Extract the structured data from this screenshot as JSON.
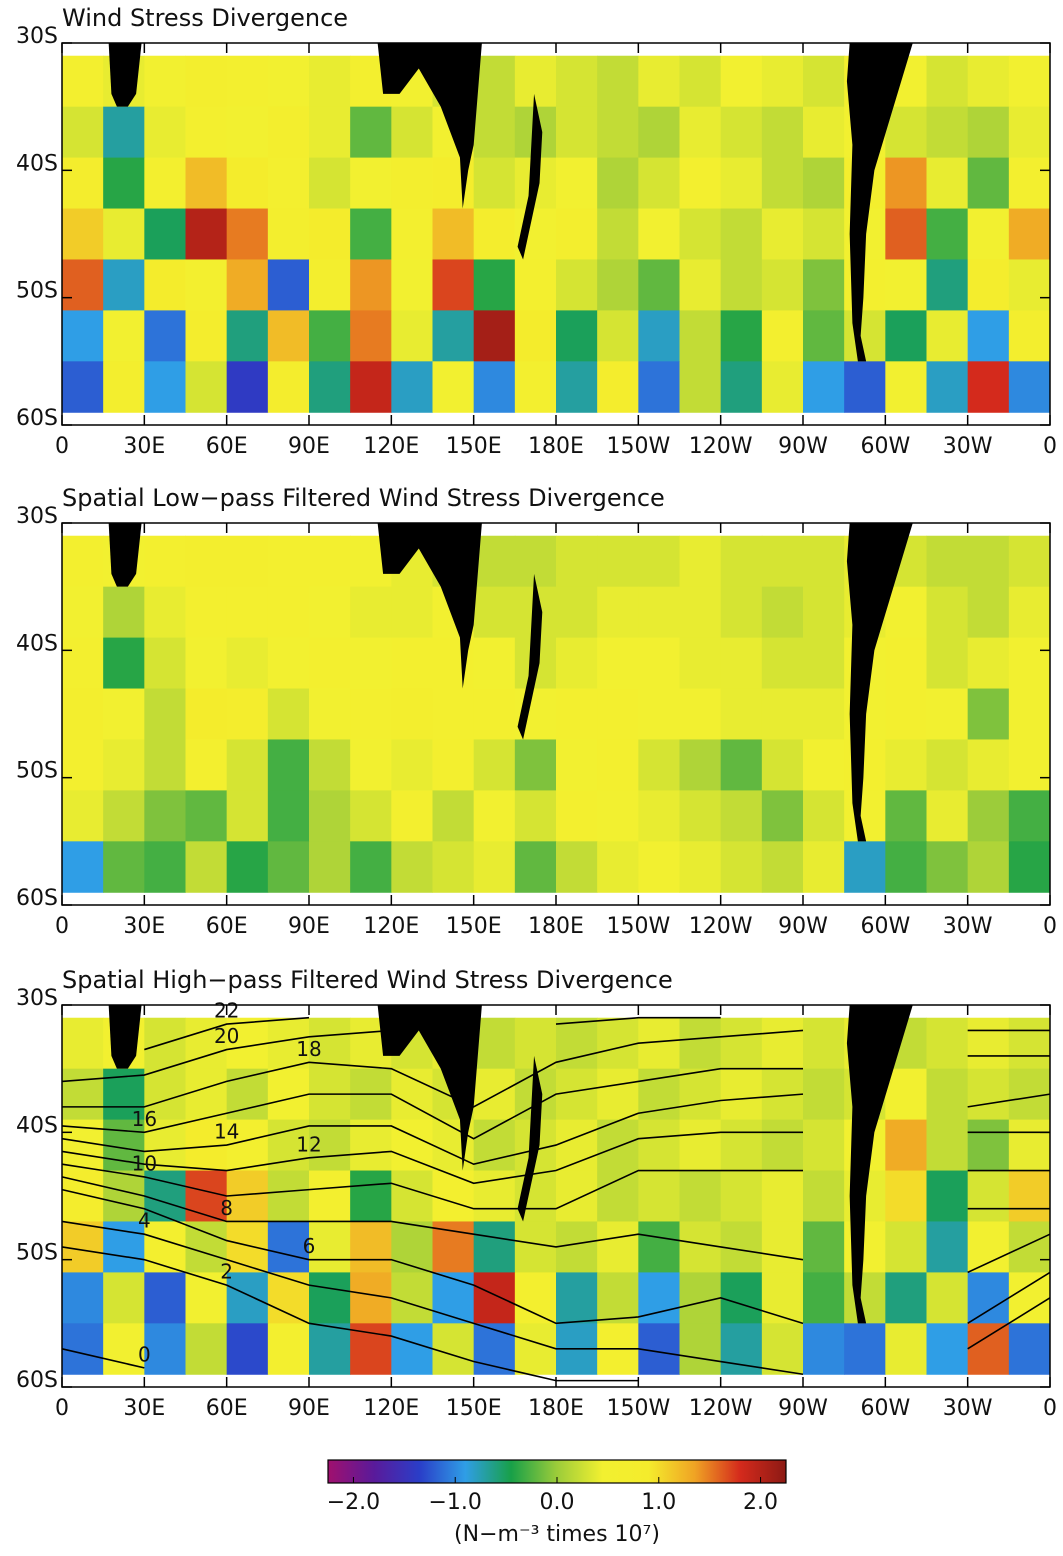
{
  "chart_data": [
    {
      "type": "heatmap",
      "title": "Wind Stress Divergence",
      "xlim": [
        0,
        360
      ],
      "ylim": [
        -60,
        -30
      ],
      "xticks": [
        0,
        {
          "value": 30,
          "label": "30E"
        },
        {
          "value": 60,
          "label": "60E"
        },
        {
          "value": 90,
          "label": "90E"
        },
        {
          "value": 120,
          "label": "120E"
        },
        {
          "value": 150,
          "label": "150E"
        },
        {
          "value": 180,
          "label": "180E"
        },
        {
          "value": 210,
          "label": "150W"
        },
        {
          "value": 240,
          "label": "120W"
        },
        {
          "value": 270,
          "label": "90W"
        },
        {
          "value": 300,
          "label": "60W"
        },
        {
          "value": 330,
          "label": "30W"
        },
        {
          "value": 360,
          "label": "0"
        }
      ],
      "yticks": [
        {
          "value": -30,
          "label": "30S"
        },
        {
          "value": -40,
          "label": "40S"
        },
        {
          "value": -50,
          "label": "50S"
        },
        {
          "value": -60,
          "label": "60S"
        }
      ],
      "x_edges": [
        0,
        15,
        30,
        45,
        60,
        75,
        90,
        105,
        120,
        135,
        150,
        165,
        180,
        195,
        210,
        225,
        240,
        255,
        270,
        285,
        300,
        315,
        330,
        345,
        360
      ],
      "y_edges": [
        -31,
        -35,
        -39,
        -43,
        -47,
        -51,
        -55,
        -59
      ],
      "values": [
        [
          0.6,
          0.4,
          0.5,
          0.7,
          0.6,
          0.5,
          0.4,
          0.6,
          0.5,
          0.3,
          0.2,
          0.4,
          0.3,
          0.2,
          0.4,
          0.3,
          0.5,
          0.4,
          0.3,
          0.6,
          0.5,
          0.3,
          0.4,
          0.5
        ],
        [
          0.3,
          -0.7,
          0.4,
          0.6,
          0.5,
          0.7,
          0.4,
          -0.2,
          0.3,
          0.5,
          0.2,
          0.1,
          0.3,
          0.2,
          0.1,
          0.4,
          0.3,
          0.2,
          0.4,
          0.5,
          0.3,
          0.2,
          0.1,
          0.4
        ],
        [
          0.8,
          -0.4,
          0.6,
          1.2,
          0.9,
          0.6,
          0.3,
          0.5,
          0.7,
          0.8,
          0.3,
          0.4,
          0.5,
          0.1,
          0.3,
          0.6,
          0.4,
          0.2,
          0.1,
          0.7,
          1.4,
          0.4,
          -0.2,
          0.6
        ],
        [
          1.1,
          0.4,
          -0.5,
          2.0,
          1.5,
          0.7,
          0.9,
          -0.3,
          0.6,
          1.2,
          0.8,
          0.5,
          0.7,
          0.2,
          0.5,
          0.3,
          0.2,
          0.4,
          0.3,
          0.5,
          1.6,
          -0.3,
          0.5,
          1.3
        ],
        [
          1.6,
          -0.8,
          0.9,
          0.6,
          1.3,
          -1.2,
          0.7,
          1.4,
          0.5,
          1.7,
          -0.4,
          0.6,
          0.3,
          0.1,
          -0.2,
          0.4,
          0.2,
          0.3,
          -0.1,
          0.6,
          0.5,
          -0.6,
          0.8,
          0.4
        ],
        [
          -0.9,
          0.5,
          -1.1,
          0.8,
          -0.6,
          1.2,
          -0.3,
          1.5,
          0.4,
          -0.7,
          2.1,
          0.9,
          -0.5,
          0.3,
          -0.8,
          0.2,
          -0.4,
          0.6,
          -0.2,
          0.3,
          -0.5,
          0.4,
          -0.9,
          0.7
        ],
        [
          -1.2,
          0.7,
          -0.9,
          0.3,
          -1.4,
          0.8,
          -0.6,
          1.9,
          -0.8,
          0.5,
          -1.0,
          0.6,
          -0.7,
          0.8,
          -1.1,
          0.2,
          -0.6,
          0.4,
          -0.9,
          -1.2,
          0.5,
          -0.8,
          1.8,
          -1.0
        ]
      ]
    },
    {
      "type": "heatmap",
      "title": "Spatial Low−pass Filtered Wind Stress Divergence",
      "xlim": [
        0,
        360
      ],
      "ylim": [
        -60,
        -30
      ],
      "xticks": [
        0,
        {
          "value": 30,
          "label": "30E"
        },
        {
          "value": 60,
          "label": "60E"
        },
        {
          "value": 90,
          "label": "90E"
        },
        {
          "value": 120,
          "label": "120E"
        },
        {
          "value": 150,
          "label": "150E"
        },
        {
          "value": 180,
          "label": "180E"
        },
        {
          "value": 210,
          "label": "150W"
        },
        {
          "value": 240,
          "label": "120W"
        },
        {
          "value": 270,
          "label": "90W"
        },
        {
          "value": 300,
          "label": "60W"
        },
        {
          "value": 330,
          "label": "30W"
        },
        {
          "value": 360,
          "label": "0"
        }
      ],
      "yticks": [
        {
          "value": -30,
          "label": "30S"
        },
        {
          "value": -40,
          "label": "40S"
        },
        {
          "value": -50,
          "label": "50S"
        },
        {
          "value": -60,
          "label": "60S"
        }
      ],
      "x_edges": [
        0,
        15,
        30,
        45,
        60,
        75,
        90,
        105,
        120,
        135,
        150,
        165,
        180,
        195,
        210,
        225,
        240,
        255,
        270,
        285,
        300,
        315,
        330,
        345,
        360
      ],
      "y_edges": [
        -31,
        -35,
        -39,
        -43,
        -47,
        -51,
        -55,
        -59
      ],
      "values": [
        [
          0.6,
          0.5,
          0.6,
          0.7,
          0.7,
          0.6,
          0.6,
          0.5,
          0.4,
          0.3,
          0.2,
          0.2,
          0.3,
          0.3,
          0.3,
          0.4,
          0.3,
          0.3,
          0.3,
          0.4,
          0.3,
          0.2,
          0.2,
          0.3
        ],
        [
          0.5,
          0.1,
          0.4,
          0.6,
          0.6,
          0.6,
          0.5,
          0.4,
          0.4,
          0.5,
          0.3,
          0.3,
          0.3,
          0.4,
          0.4,
          0.4,
          0.3,
          0.2,
          0.3,
          0.4,
          0.5,
          0.3,
          0.2,
          0.4
        ],
        [
          0.6,
          -0.4,
          0.3,
          0.5,
          0.4,
          0.5,
          0.6,
          0.5,
          0.6,
          0.6,
          0.5,
          0.3,
          0.4,
          0.5,
          0.5,
          0.4,
          0.4,
          0.3,
          0.3,
          0.5,
          0.6,
          0.3,
          0.4,
          0.5
        ],
        [
          0.7,
          0.5,
          0.2,
          0.9,
          0.8,
          0.3,
          0.5,
          0.6,
          0.7,
          0.6,
          0.6,
          0.5,
          0.6,
          0.6,
          0.5,
          0.5,
          0.4,
          0.4,
          0.4,
          0.5,
          0.6,
          0.5,
          -0.1,
          0.5
        ],
        [
          0.6,
          0.4,
          0.2,
          0.6,
          0.3,
          -0.3,
          0.2,
          0.5,
          0.4,
          0.6,
          0.3,
          -0.1,
          0.5,
          0.6,
          0.3,
          0.1,
          -0.2,
          0.3,
          0.5,
          0.6,
          0.4,
          0.3,
          0.4,
          0.5
        ],
        [
          0.4,
          0.2,
          -0.1,
          -0.2,
          0.3,
          -0.3,
          0.1,
          0.3,
          0.6,
          0.2,
          0.5,
          0.3,
          0.6,
          0.5,
          0.4,
          0.3,
          0.2,
          -0.1,
          0.3,
          0.5,
          -0.2,
          0.4,
          0.0,
          -0.3
        ],
        [
          -0.9,
          -0.2,
          -0.3,
          0.2,
          -0.4,
          -0.2,
          0.1,
          -0.3,
          0.2,
          0.3,
          0.4,
          -0.2,
          0.2,
          0.4,
          0.5,
          0.4,
          0.3,
          0.2,
          0.4,
          -0.8,
          -0.3,
          -0.1,
          0.1,
          -0.4
        ]
      ]
    },
    {
      "type": "heatmap",
      "title": "Spatial High−pass Filtered Wind Stress Divergence",
      "xlim": [
        0,
        360
      ],
      "ylim": [
        -60,
        -30
      ],
      "xticks": [
        0,
        {
          "value": 30,
          "label": "30E"
        },
        {
          "value": 60,
          "label": "60E"
        },
        {
          "value": 90,
          "label": "90E"
        },
        {
          "value": 120,
          "label": "120E"
        },
        {
          "value": 150,
          "label": "150E"
        },
        {
          "value": 180,
          "label": "180E"
        },
        {
          "value": 210,
          "label": "150W"
        },
        {
          "value": 240,
          "label": "120W"
        },
        {
          "value": 270,
          "label": "90W"
        },
        {
          "value": 300,
          "label": "60W"
        },
        {
          "value": 330,
          "label": "30W"
        },
        {
          "value": 360,
          "label": "0"
        }
      ],
      "yticks": [
        {
          "value": -30,
          "label": "30S"
        },
        {
          "value": -40,
          "label": "40S"
        },
        {
          "value": -50,
          "label": "50S"
        },
        {
          "value": -60,
          "label": "60S"
        }
      ],
      "x_edges": [
        0,
        15,
        30,
        45,
        60,
        75,
        90,
        105,
        120,
        135,
        150,
        165,
        180,
        195,
        210,
        225,
        240,
        255,
        270,
        285,
        300,
        315,
        330,
        345,
        360
      ],
      "y_edges": [
        -31,
        -35,
        -39,
        -43,
        -47,
        -51,
        -55,
        -59
      ],
      "values": [
        [
          0.4,
          0.5,
          0.3,
          0.4,
          0.5,
          0.4,
          0.3,
          0.4,
          0.3,
          0.4,
          0.2,
          0.3,
          0.2,
          0.3,
          0.4,
          0.2,
          0.3,
          0.4,
          0.3,
          0.4,
          0.2,
          0.3,
          0.4,
          0.3
        ],
        [
          0.2,
          -0.5,
          0.3,
          0.4,
          0.2,
          0.5,
          0.3,
          0.2,
          0.4,
          0.3,
          0.4,
          0.2,
          0.3,
          0.4,
          0.2,
          0.3,
          0.4,
          0.3,
          0.2,
          0.3,
          0.5,
          0.2,
          0.3,
          0.2
        ],
        [
          0.5,
          -0.2,
          0.4,
          0.9,
          0.6,
          0.3,
          0.2,
          0.4,
          0.5,
          0.4,
          0.2,
          0.3,
          0.4,
          0.2,
          0.3,
          0.4,
          0.3,
          0.2,
          0.3,
          0.5,
          1.3,
          0.2,
          -0.1,
          0.4
        ],
        [
          0.8,
          0.1,
          -0.6,
          1.7,
          1.1,
          0.2,
          0.6,
          -0.4,
          0.3,
          0.6,
          0.4,
          0.3,
          0.4,
          0.2,
          0.3,
          0.2,
          0.3,
          0.4,
          0.2,
          0.4,
          1.0,
          -0.5,
          0.3,
          1.1
        ],
        [
          1.1,
          -0.9,
          0.6,
          0.2,
          1.0,
          -1.1,
          0.4,
          1.2,
          0.1,
          1.5,
          -0.6,
          0.3,
          0.2,
          0.4,
          -0.3,
          0.3,
          0.2,
          0.4,
          -0.2,
          0.5,
          0.3,
          -0.7,
          0.5,
          0.2
        ],
        [
          -1.0,
          0.3,
          -1.2,
          0.5,
          -0.8,
          1.0,
          -0.5,
          1.3,
          0.2,
          -0.9,
          1.9,
          0.6,
          -0.7,
          0.2,
          -0.9,
          0.1,
          -0.5,
          0.4,
          -0.3,
          0.2,
          -0.6,
          0.3,
          -1.0,
          0.5
        ],
        [
          -1.1,
          0.5,
          -1.0,
          0.2,
          -1.3,
          0.6,
          -0.7,
          1.7,
          -0.9,
          0.3,
          -1.1,
          0.4,
          -0.8,
          0.6,
          -1.2,
          0.1,
          -0.7,
          0.3,
          -1.0,
          -1.1,
          0.4,
          -0.9,
          1.6,
          -1.1
        ]
      ],
      "contours": {
        "x": [
          0,
          30,
          60,
          90,
          120,
          150,
          180,
          210,
          240,
          270,
          300,
          330,
          360
        ],
        "lines": [
          {
            "level": 22,
            "y": [
              null,
              -33.5,
              -31.5,
              -31,
              null,
              null,
              null,
              null,
              null,
              null,
              null,
              null,
              null
            ]
          },
          {
            "level": 20,
            "y": [
              -36,
              -35.5,
              -33.5,
              -32.5,
              -32,
              null,
              -31.5,
              -31,
              -31,
              null,
              null,
              null,
              null
            ]
          },
          {
            "level": 18,
            "y": [
              -38,
              -38,
              -36,
              -34.5,
              -35,
              -38,
              -34.5,
              -33,
              -32.5,
              -32,
              null,
              -32,
              -32
            ]
          },
          {
            "level": 16,
            "y": [
              -39.5,
              -40,
              -38.5,
              -37,
              -37,
              -40.5,
              -37,
              -36,
              -35,
              -35,
              null,
              -34,
              -34
            ]
          },
          {
            "level": 14,
            "y": [
              -40.5,
              -41.5,
              -41,
              -39.5,
              -39.5,
              -42.5,
              -41,
              -38.5,
              -37.5,
              -37,
              null,
              -38,
              -37
            ]
          },
          {
            "level": 12,
            "y": [
              -41.5,
              -42.5,
              -43,
              -42,
              -41.5,
              -44,
              -43,
              -40.5,
              -40,
              -40,
              null,
              -40,
              -40
            ]
          },
          {
            "level": 10,
            "y": [
              -42.5,
              -43.5,
              -45,
              -44.5,
              -44,
              -46,
              -46,
              -43,
              -43,
              -43,
              null,
              -43,
              -43
            ]
          },
          {
            "level": 8,
            "y": [
              -43.5,
              -45,
              -47,
              -47,
              -47,
              -48,
              -49,
              -48,
              -49,
              -50,
              null,
              -46,
              -46
            ]
          },
          {
            "level": 6,
            "y": [
              -44.5,
              -46,
              -48.5,
              -50,
              -50,
              -52,
              -55,
              -54.5,
              -53,
              -55,
              null,
              -51,
              -48
            ]
          },
          {
            "level": 4,
            "y": [
              -47,
              -48,
              -50,
              -52,
              -53,
              -55,
              -57,
              -57,
              -58,
              -59,
              null,
              -55,
              -51
            ]
          },
          {
            "level": 2,
            "y": [
              -49,
              -50,
              -52,
              -55,
              -56,
              -58,
              -59.5,
              -59.5,
              null,
              null,
              null,
              -57,
              -53
            ]
          },
          {
            "level": 0,
            "y": [
              -57,
              -58.5,
              null,
              null,
              null,
              null,
              null,
              null,
              null,
              null,
              null,
              null,
              null
            ]
          }
        ]
      }
    },
    {
      "type": "colorbar",
      "lim": [
        -2.25,
        2.25
      ],
      "ticks": [
        {
          "value": -2,
          "label": "−2.0"
        },
        {
          "value": -1,
          "label": "−1.0"
        },
        {
          "value": 0,
          "label": "0.0"
        },
        {
          "value": 1,
          "label": "1.0"
        },
        {
          "value": 2,
          "label": "2.0"
        }
      ],
      "label": "(N−m⁻³ times 10⁷)",
      "colors": [
        "#a0106e",
        "#5a1a9a",
        "#2a3ec8",
        "#2f9ee6",
        "#18a048",
        "#9ccc3a",
        "#f2f030",
        "#f4ec2c",
        "#f0a424",
        "#d42a1c",
        "#8c1a14"
      ]
    }
  ]
}
